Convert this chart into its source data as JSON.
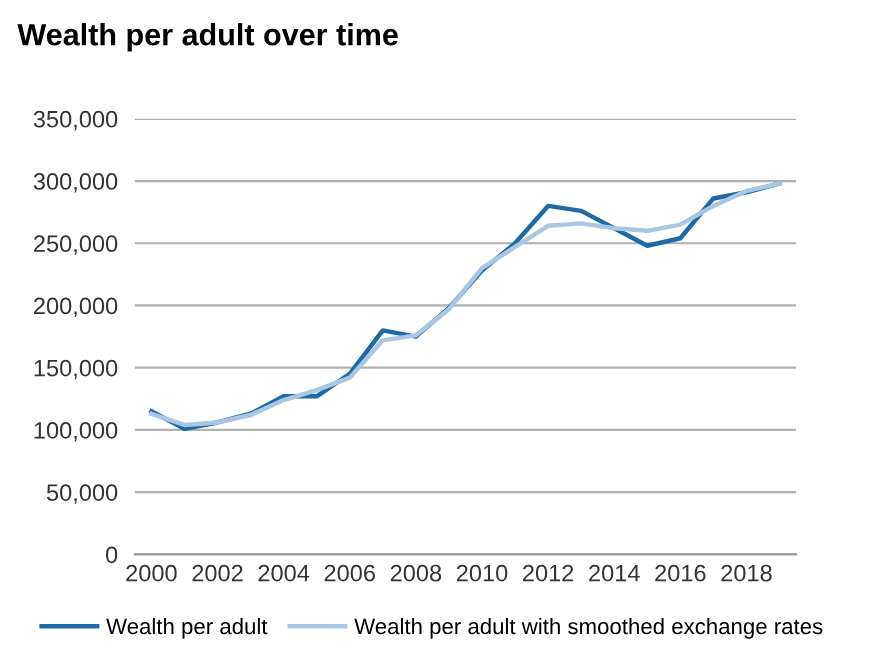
{
  "chart_data": {
    "type": "line",
    "title": "Wealth per adult over time",
    "x": [
      2000,
      2001,
      2002,
      2003,
      2004,
      2005,
      2006,
      2007,
      2008,
      2009,
      2010,
      2011,
      2012,
      2013,
      2014,
      2015,
      2016,
      2017,
      2018,
      2019
    ],
    "series": [
      {
        "name": "Wealth per adult",
        "color": "#1f6aa5",
        "values": [
          115000,
          101000,
          106000,
          113000,
          127000,
          127000,
          145000,
          180000,
          175000,
          198000,
          228000,
          250000,
          280000,
          276000,
          262000,
          248000,
          254000,
          286000,
          291000,
          298000
        ]
      },
      {
        "name": "Wealth per adult with smoothed exchange rates",
        "color": "#a9c7e3",
        "values": [
          113000,
          104000,
          106000,
          112000,
          124000,
          132000,
          142000,
          172000,
          176000,
          197000,
          230000,
          247000,
          264000,
          266000,
          262000,
          260000,
          265000,
          280000,
          292000,
          298000
        ]
      }
    ],
    "xlim": [
      1999.5,
      2019.5
    ],
    "xticks": [
      2000,
      2002,
      2004,
      2006,
      2008,
      2010,
      2012,
      2014,
      2016,
      2018
    ],
    "ylim": [
      0,
      350000
    ],
    "yticks": [
      {
        "value": 0,
        "label": "0"
      },
      {
        "value": 50000,
        "label": "50,000"
      },
      {
        "value": 100000,
        "label": "100,000"
      },
      {
        "value": 150000,
        "label": "150,000"
      },
      {
        "value": 200000,
        "label": "200,000"
      },
      {
        "value": 250000,
        "label": "250,000"
      },
      {
        "value": 300000,
        "label": "300,000"
      },
      {
        "value": 350000,
        "label": "350,000"
      }
    ],
    "grid": "y",
    "legend": "bottom",
    "marker": "none",
    "line_style": "solid"
  }
}
